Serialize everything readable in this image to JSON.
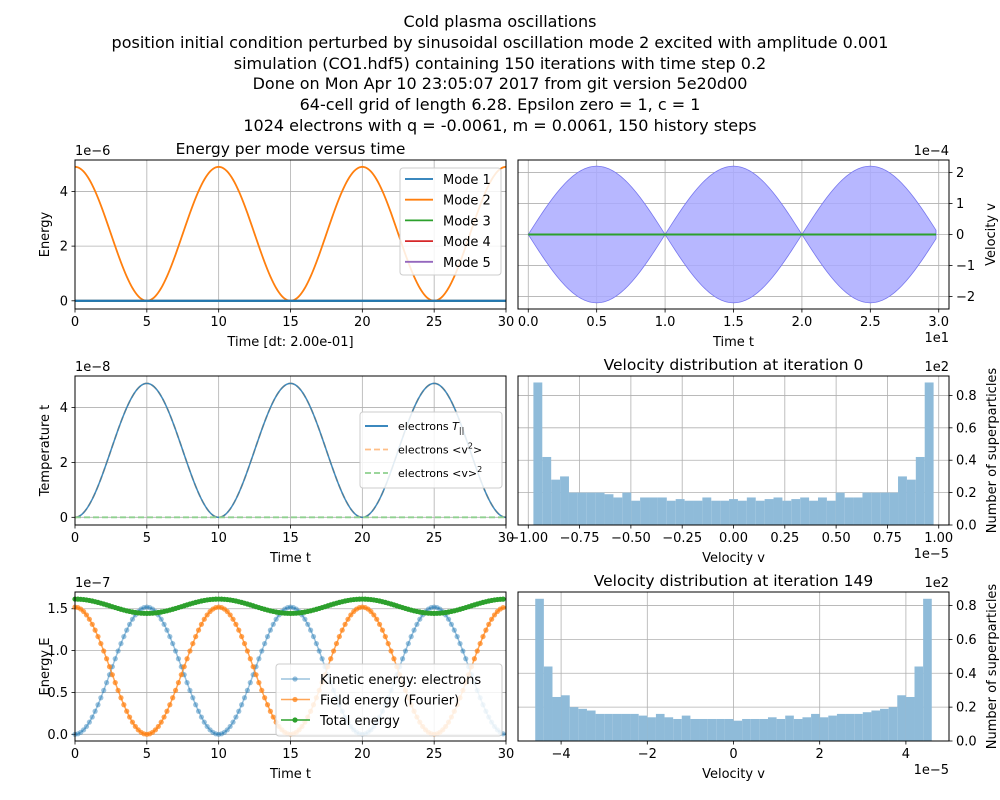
{
  "figure": {
    "title_lines": [
      "Cold plasma oscillations",
      "position initial condition perturbed by sinusoidal oscillation mode 2 excited with amplitude 0.001",
      "simulation (CO1.hdf5) containing 150 iterations with time step 0.2",
      "Done on Mon Apr 10 23:05:07 2017 from git version 5e20d00",
      "64-cell grid of length 6.28. Epsilon zero = 1, c = 1",
      "1024 electrons with q = -0.0061, m = 0.0061, 150 history steps"
    ]
  },
  "colors": {
    "c0": "#1f77b4",
    "c1": "#ff7f0e",
    "c2": "#2ca02c",
    "c3": "#d62728",
    "c4": "#9467bd",
    "hist": "#8fbbd9",
    "fill": "#aaaaff",
    "grid": "#b0b0b0"
  },
  "chart_data": [
    {
      "id": "energy_modes",
      "type": "line",
      "title": "Energy per mode versus time",
      "xlabel": "Time [dt: 2.00e-01]",
      "ylabel": "Energy",
      "offset_text": "1e−6",
      "xlim": [
        0,
        30
      ],
      "ylim": [
        -0.3,
        5.15
      ],
      "xticks": [
        0,
        5,
        10,
        15,
        20,
        25,
        30
      ],
      "yticks": [
        0,
        2,
        4
      ],
      "grid": true,
      "legend_position": "upper right",
      "series": [
        {
          "name": "Mode 1",
          "color": "#1f77b4",
          "formula": "zero"
        },
        {
          "name": "Mode 2",
          "color": "#ff7f0e",
          "formula": "amp*cos^2(pi*t/10)",
          "amplitude": 4.9,
          "period": 10
        },
        {
          "name": "Mode 3",
          "color": "#2ca02c",
          "formula": "zero"
        },
        {
          "name": "Mode 4",
          "color": "#d62728",
          "formula": "zero"
        },
        {
          "name": "Mode 5",
          "color": "#9467bd",
          "formula": "zero"
        }
      ]
    },
    {
      "id": "velocity_vs_time",
      "type": "area",
      "xlabel": "Time t",
      "ylabel": "Velocity v",
      "x_offset_text": "1e1",
      "offset_text": "1e−4",
      "xlim": [
        -0.075,
        3.075
      ],
      "ylim": [
        -2.4,
        2.4
      ],
      "xticks": [
        "0.0",
        "0.5",
        "1.0",
        "1.5",
        "2.0",
        "2.5",
        "3.0"
      ],
      "yticks": [
        "−2",
        "−1",
        "0",
        "1",
        "2"
      ],
      "grid": true,
      "envelope": {
        "amplitude": 2.2,
        "period": 1.0,
        "x_range": [
          0,
          2.98
        ],
        "color": "#aaaaff"
      },
      "mean_line": {
        "value": 0,
        "color": "#2ca02c"
      }
    },
    {
      "id": "temperature",
      "type": "line",
      "xlabel": "Time t",
      "ylabel": "Temperature t",
      "offset_text": "1e−8",
      "xlim": [
        0,
        30
      ],
      "ylim": [
        -0.28,
        5.15
      ],
      "xticks": [
        0,
        5,
        10,
        15,
        20,
        25,
        30
      ],
      "yticks": [
        0,
        2,
        4
      ],
      "grid": true,
      "legend_position": "center right",
      "series": [
        {
          "name": "electrons T||",
          "label_parts": [
            "electrons ",
            "T",
            "||"
          ],
          "color": "#1f77b4",
          "amplitude": 4.88,
          "period": 10
        },
        {
          "name": "electrons <v2>",
          "label_parts": [
            "electrons  <v",
            "2",
            ">"
          ],
          "color": "#ff7f0e",
          "amplitude": 4.88,
          "period": 10,
          "dashed": true
        },
        {
          "name": "electrons <v>2",
          "label_parts": [
            "electrons  <v>",
            "2",
            ""
          ],
          "color": "#2ca02c",
          "value": 0,
          "dashed": true
        }
      ]
    },
    {
      "id": "hist_iter0",
      "type": "bar",
      "title": "Velocity distribution at iteration 0",
      "xlabel": "Velocity v",
      "ylabel": "Number of superparticles",
      "x_offset_text": "1e−5",
      "offset_text": "1e2",
      "xlim": [
        -1.05,
        1.05
      ],
      "ylim": [
        0,
        0.92
      ],
      "xticks": [
        "−1.00",
        "−0.75",
        "−0.50",
        "−0.25",
        "0.00",
        "0.25",
        "0.50",
        "0.75",
        "1.00"
      ],
      "yticks": [
        "0.0",
        "0.2",
        "0.4",
        "0.6",
        "0.8"
      ],
      "grid": true,
      "bin_range": [
        -0.975,
        0.975
      ],
      "values": [
        0.88,
        0.42,
        0.28,
        0.3,
        0.2,
        0.2,
        0.2,
        0.2,
        0.19,
        0.17,
        0.2,
        0.15,
        0.17,
        0.17,
        0.17,
        0.15,
        0.16,
        0.15,
        0.15,
        0.17,
        0.15,
        0.15,
        0.16,
        0.15,
        0.17,
        0.15,
        0.16,
        0.17,
        0.15,
        0.16,
        0.17,
        0.15,
        0.17,
        0.15,
        0.2,
        0.17,
        0.17,
        0.2,
        0.2,
        0.2,
        0.2,
        0.3,
        0.28,
        0.42,
        0.88
      ]
    },
    {
      "id": "energies",
      "type": "line",
      "xlabel": "Time t",
      "ylabel": "Energy E",
      "offset_text": "1e−7",
      "xlim": [
        0,
        30
      ],
      "ylim": [
        -0.08,
        1.7
      ],
      "xticks": [
        0,
        5,
        10,
        15,
        20,
        25,
        30
      ],
      "yticks": [
        "0.0",
        "0.5",
        "1.0",
        "1.5"
      ],
      "grid": true,
      "legend_position": "lower right",
      "series": [
        {
          "name": "Kinetic energy: electrons",
          "color": "#1f77b4",
          "alpha": 0.45,
          "amplitude": 1.52,
          "period": 10,
          "phase": "sin2"
        },
        {
          "name": "Field energy (Fourier)",
          "color": "#ff7f0e",
          "alpha": 0.7,
          "amplitude": 1.52,
          "period": 10,
          "phase": "cos2"
        },
        {
          "name": "Total energy",
          "color": "#2ca02c",
          "alpha": 1.0,
          "mean": 1.53,
          "ripple": 0.095,
          "period": 10
        }
      ]
    },
    {
      "id": "hist_iter149",
      "type": "bar",
      "title": "Velocity distribution at iteration 149",
      "xlabel": "Velocity v",
      "ylabel": "Number of superparticles",
      "x_offset_text": "1e−5",
      "offset_text": "1e2",
      "xlim": [
        -5.0,
        5.0
      ],
      "ylim": [
        0,
        0.88
      ],
      "xticks": [
        "−4",
        "−2",
        "0",
        "2",
        "4"
      ],
      "yticks": [
        "0.0",
        "0.2",
        "0.4",
        "0.6",
        "0.8"
      ],
      "grid": true,
      "bin_range": [
        -4.6,
        4.6
      ],
      "values": [
        0.84,
        0.44,
        0.26,
        0.27,
        0.2,
        0.19,
        0.18,
        0.16,
        0.16,
        0.16,
        0.16,
        0.16,
        0.15,
        0.14,
        0.16,
        0.14,
        0.13,
        0.15,
        0.13,
        0.13,
        0.13,
        0.13,
        0.13,
        0.12,
        0.13,
        0.13,
        0.13,
        0.14,
        0.13,
        0.15,
        0.13,
        0.14,
        0.16,
        0.14,
        0.15,
        0.16,
        0.16,
        0.16,
        0.17,
        0.18,
        0.19,
        0.2,
        0.27,
        0.26,
        0.44,
        0.84
      ]
    }
  ]
}
